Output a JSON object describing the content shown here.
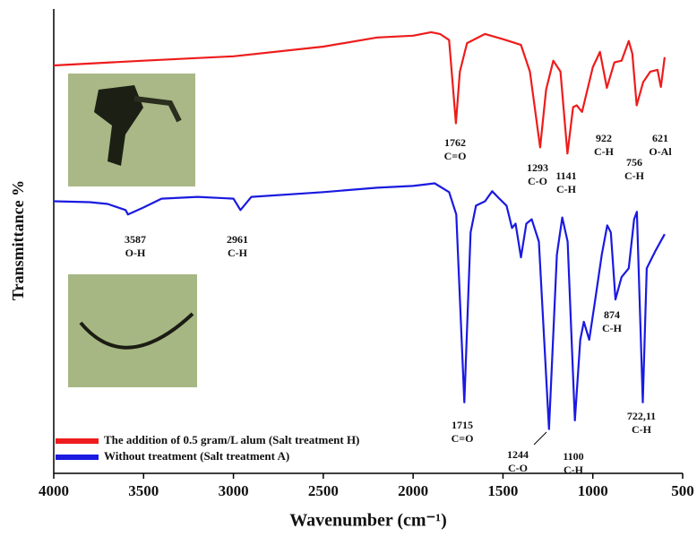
{
  "chart_data": {
    "type": "line",
    "x_label": "Wavenumber (cm⁻¹)",
    "y_label": "Transmittance %",
    "xlim": [
      4000,
      500
    ],
    "ylim": [
      -6,
      100
    ],
    "xticks": [
      4000,
      3500,
      3000,
      2500,
      2000,
      1500,
      1000,
      500
    ],
    "legend": "lower left",
    "series": [
      {
        "name": "The addition of 0.5 gram/L alum (Salt treatment H)",
        "color": "#ee1c1c",
        "x": [
          4000,
          3500,
          3000,
          2500,
          2200,
          2000,
          1900,
          1850,
          1800,
          1762,
          1740,
          1700,
          1600,
          1500,
          1400,
          1350,
          1293,
          1260,
          1220,
          1180,
          1141,
          1110,
          1090,
          1060,
          1000,
          960,
          922,
          880,
          840,
          800,
          780,
          756,
          720,
          680,
          640,
          621,
          600
        ],
        "values": [
          87.1,
          88.2,
          89.2,
          91.4,
          93.5,
          93.9,
          94.7,
          94.3,
          92.9,
          73.9,
          85.7,
          92.2,
          94.3,
          93.1,
          91.8,
          85.7,
          68.4,
          81.6,
          88.2,
          85.7,
          67.0,
          77.6,
          78.0,
          76.5,
          86.7,
          90.2,
          82.0,
          87.8,
          88.2,
          92.7,
          89.8,
          78.0,
          83.3,
          85.7,
          86.1,
          82.2,
          89.0
        ]
      },
      {
        "name": "Without treatment (Salt treatment A)",
        "color": "#1a1ae0",
        "x": [
          4000,
          3800,
          3700,
          3600,
          3587,
          3500,
          3400,
          3200,
          3000,
          2961,
          2900,
          2500,
          2200,
          2000,
          1880,
          1800,
          1760,
          1715,
          1680,
          1650,
          1600,
          1560,
          1520,
          1480,
          1450,
          1430,
          1400,
          1370,
          1340,
          1300,
          1244,
          1200,
          1170,
          1140,
          1100,
          1070,
          1050,
          1020,
          990,
          950,
          920,
          900,
          874,
          840,
          800,
          770,
          755,
          722,
          700,
          650,
          600
        ],
        "values": [
          56.1,
          55.9,
          55.5,
          54.1,
          53.1,
          54.7,
          56.7,
          57.1,
          56.7,
          54.1,
          57.1,
          58.2,
          59.2,
          59.6,
          60.2,
          58.2,
          53.1,
          10.2,
          49.0,
          55.1,
          56.1,
          58.4,
          56.7,
          55.1,
          50.0,
          51.0,
          43.3,
          51.0,
          52.0,
          46.9,
          4.1,
          43.9,
          52.4,
          46.9,
          6.1,
          24.5,
          28.6,
          24.5,
          32.7,
          43.9,
          50.6,
          49.0,
          33.7,
          38.8,
          40.8,
          52.0,
          53.7,
          10.2,
          40.8,
          44.9,
          48.6
        ]
      }
    ],
    "annotations": [
      {
        "text": "1762",
        "bond": "C=O"
      },
      {
        "text": "1293",
        "bond": "C-O"
      },
      {
        "text": "1141",
        "bond": "C-H"
      },
      {
        "text": "922",
        "bond": "C-H"
      },
      {
        "text": "756",
        "bond": "C-H"
      },
      {
        "text": "621",
        "bond": "O-Al"
      },
      {
        "text": "3587",
        "bond": "O-H"
      },
      {
        "text": "2961",
        "bond": "C-H"
      },
      {
        "text": "874",
        "bond": "C-H"
      },
      {
        "text": "1715",
        "bond": "C=O"
      },
      {
        "text": "1244",
        "bond": "C-O"
      },
      {
        "text": "1100",
        "bond": "C-H"
      },
      {
        "text": "722,11",
        "bond": "C-H"
      }
    ]
  }
}
